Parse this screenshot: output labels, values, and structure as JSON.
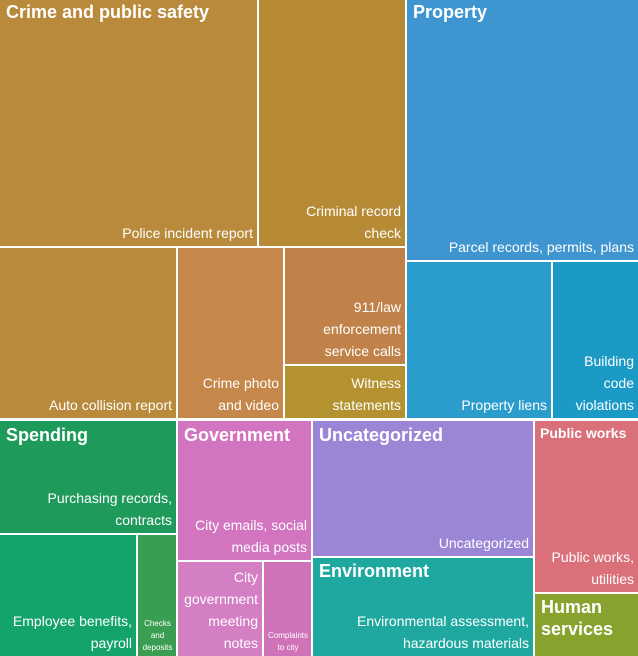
{
  "groups": [
    {
      "title": "Crime and public safety",
      "items": [
        "Police incident report",
        "Criminal record check",
        "Auto collision report",
        "Crime photo and video",
        "911/law enforcement service calls",
        "Witness statements"
      ]
    },
    {
      "title": "Property",
      "items": [
        "Parcel records, permits, plans",
        "Property liens",
        "Building code violations"
      ]
    },
    {
      "title": "Spending",
      "items": [
        "Purchasing records, contracts",
        "Employee benefits, payroll",
        "Checks and deposits"
      ]
    },
    {
      "title": "Government",
      "items": [
        "City emails, social media posts",
        "City government meeting notes",
        "Complaints to city"
      ]
    },
    {
      "title": "Uncategorized",
      "items": [
        "Uncategorized"
      ]
    },
    {
      "title": "Environment",
      "items": [
        "Environmental assessment, hazardous materials"
      ]
    },
    {
      "title": "Public works",
      "items": [
        "Public works, utilities"
      ]
    },
    {
      "title": "Human services",
      "items": []
    }
  ]
}
